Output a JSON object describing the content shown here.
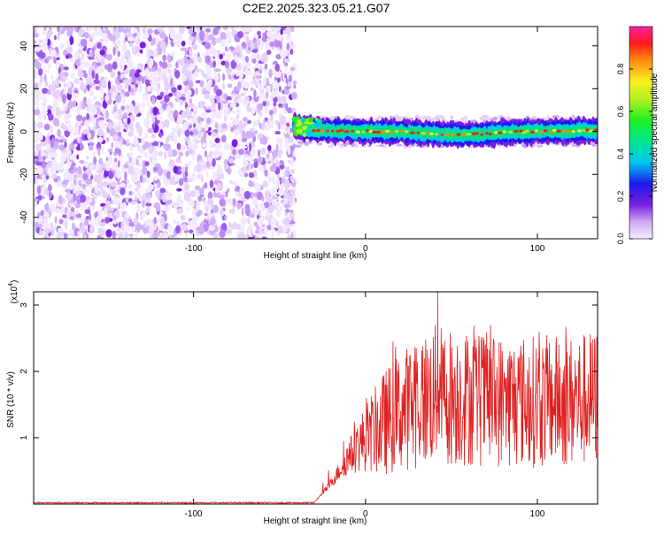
{
  "title": "C2E2.2025.323.05.21.G07",
  "chart_data": [
    {
      "type": "heatmap",
      "xlabel": "Height of straight line (km)",
      "ylabel": "Frequency (Hz)",
      "xlim": [
        -193,
        135
      ],
      "ylim": [
        -50,
        49
      ],
      "x_ticks": [
        -100,
        0,
        100
      ],
      "y_ticks": [
        -40,
        -20,
        0,
        20,
        40
      ],
      "description_regions": [
        {
          "x_range": [
            -193,
            -41
          ],
          "content": "noise",
          "amplitude_max": 0.35
        },
        {
          "x_range": [
            -41,
            135
          ],
          "content": "signal ridge near 0 Hz",
          "amplitude_max": 1.0
        }
      ],
      "colorbar": {
        "label": "Normalized spectral amplitude",
        "ticks": [
          0.0,
          0.2,
          0.4,
          0.6,
          0.8
        ],
        "range": [
          0,
          1
        ]
      }
    },
    {
      "type": "line",
      "xlabel": "Height of straight line (km)",
      "ylabel": "SNR (10 * v/v)",
      "y_scale_note": "(x10",
      "y_scale_exp": "4",
      "xlim": [
        -193,
        135
      ],
      "ylim": [
        0,
        3.2
      ],
      "x_ticks": [
        -100,
        0,
        100
      ],
      "y_ticks": [
        1,
        2,
        3
      ],
      "series_color": "#e02020",
      "trend": [
        {
          "x": -193,
          "y": 0.02
        },
        {
          "x": -30,
          "y": 0.02
        },
        {
          "x": -22,
          "y": 0.25
        },
        {
          "x": -10,
          "y": 0.7
        },
        {
          "x": 0,
          "y": 1.0
        },
        {
          "x": 20,
          "y": 1.4
        },
        {
          "x": 40,
          "y": 1.65
        },
        {
          "x": 60,
          "y": 1.6
        },
        {
          "x": 80,
          "y": 1.55
        },
        {
          "x": 100,
          "y": 1.55
        },
        {
          "x": 120,
          "y": 1.55
        },
        {
          "x": 135,
          "y": 1.6
        }
      ],
      "peak": {
        "x": 42,
        "y": 3.2
      }
    }
  ]
}
